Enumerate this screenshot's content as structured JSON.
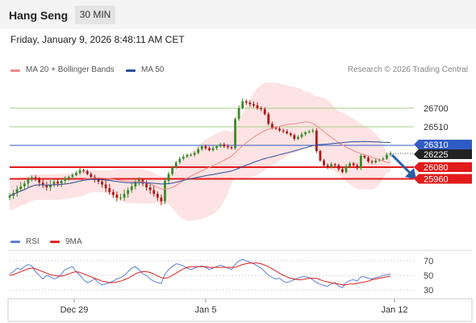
{
  "header": {
    "instrument": "Hang Seng",
    "timeframe": "30 MIN"
  },
  "timestamp": "Friday, January 9, 2026 8:48:11 AM CET",
  "legend": {
    "bollinger_label": "MA 20 + Bollinger Bands",
    "ma50_label": "MA 50",
    "copyright": "Research © 2026 Trading Central",
    "colors": {
      "bollinger": "#f08a8a",
      "ma50": "#2a4f9a",
      "band_fill": "#fde0e0"
    }
  },
  "rsi_legend": {
    "rsi_label": "RSI",
    "ma_label": "9MA",
    "colors": {
      "rsi": "#5b7fd6",
      "ma": "#e02020"
    }
  },
  "levels": [
    {
      "value": "26700",
      "kind": "resistance",
      "color": "#a5cf85"
    },
    {
      "value": "26510",
      "kind": "resistance",
      "color": "#a5cf85"
    },
    {
      "value": "26310",
      "kind": "pivot",
      "color": "#2f5cc4"
    },
    {
      "value": "26225",
      "kind": "last",
      "color": "#222222"
    },
    {
      "value": "26080",
      "kind": "support",
      "color": "#e21b1b"
    },
    {
      "value": "25960",
      "kind": "support",
      "color": "#e21b1b"
    }
  ],
  "rsi_axis": [
    "70",
    "50",
    "30"
  ],
  "x_axis": [
    "Dec 29",
    "Jan 5",
    "Jan 12"
  ],
  "arrow": {
    "direction": "down",
    "color": "#2a5ea8"
  },
  "chart_data": {
    "type": "candlestick",
    "price_range": [
      25700,
      26900
    ],
    "closes": [
      25870,
      25885,
      25905,
      25920,
      25935,
      25960,
      25975,
      25965,
      25940,
      25925,
      25915,
      25930,
      25945,
      25935,
      25950,
      25965,
      25980,
      26000,
      26020,
      26050,
      26040,
      26010,
      25980,
      25960,
      25945,
      25930,
      25910,
      25890,
      25875,
      25860,
      25860,
      25880,
      25900,
      25920,
      25945,
      25955,
      25935,
      25915,
      25900,
      25880,
      25860,
      25840,
      25950,
      26010,
      26080,
      26130,
      26170,
      26190,
      26210,
      26210,
      26230,
      26270,
      26300,
      26280,
      26260,
      26280,
      26300,
      26320,
      26300,
      26290,
      26280,
      26590,
      26700,
      26750,
      26740,
      26730,
      26720,
      26700,
      26690,
      26640,
      26540,
      26500,
      26490,
      26470,
      26460,
      26440,
      26420,
      26380,
      26400,
      26430,
      26450,
      26460,
      26470,
      26250,
      26150,
      26100,
      26080,
      26110,
      26100,
      26060,
      26030,
      26090,
      26120,
      26100,
      26070,
      26200,
      26180,
      26140,
      26130,
      26150,
      26160,
      26170,
      26210,
      26225
    ],
    "rsi": [
      52,
      55,
      60,
      58,
      62,
      65,
      63,
      55,
      50,
      45,
      50,
      48,
      45,
      47,
      52,
      58,
      60,
      62,
      55,
      50,
      44,
      40,
      42,
      45,
      40,
      37,
      38,
      40,
      42,
      45,
      47,
      50,
      55,
      60,
      62,
      58,
      52,
      50,
      45,
      42,
      40,
      39,
      52,
      58,
      62,
      66,
      65,
      63,
      60,
      58,
      60,
      62,
      63,
      61,
      58,
      60,
      62,
      64,
      62,
      60,
      58,
      65,
      70,
      72,
      70,
      68,
      66,
      63,
      60,
      55,
      50,
      47,
      45,
      46,
      42,
      40,
      42,
      44,
      46,
      48,
      48,
      47,
      44,
      40,
      38,
      36,
      35,
      38,
      40,
      35,
      33,
      40,
      43,
      44,
      42,
      48,
      48,
      46,
      45,
      47,
      48,
      50,
      51,
      52
    ],
    "rsi_ma": [
      50,
      51,
      53,
      55,
      57,
      59,
      60,
      59,
      57,
      55,
      53,
      51,
      50,
      49,
      49,
      50,
      52,
      54,
      55,
      54,
      52,
      50,
      48,
      46,
      44,
      42,
      41,
      40,
      40,
      41,
      42,
      44,
      46,
      49,
      52,
      54,
      55,
      55,
      54,
      52,
      49,
      47,
      46,
      47,
      50,
      53,
      56,
      59,
      61,
      62,
      62,
      62,
      62,
      62,
      61,
      61,
      61,
      61,
      61,
      61,
      61,
      61,
      63,
      65,
      66,
      67,
      67,
      67,
      66,
      64,
      62,
      59,
      56,
      53,
      50,
      48,
      46,
      45,
      44,
      44,
      45,
      46,
      46,
      46,
      44,
      42,
      41,
      40,
      39,
      38,
      37,
      37,
      38,
      38,
      39,
      40,
      41,
      42,
      44,
      45,
      46,
      47,
      48,
      49
    ],
    "rsi_levels": [
      70,
      50,
      30
    ],
    "x_labels": [
      "Dec 29",
      "Jan 5",
      "Jan 12"
    ]
  }
}
